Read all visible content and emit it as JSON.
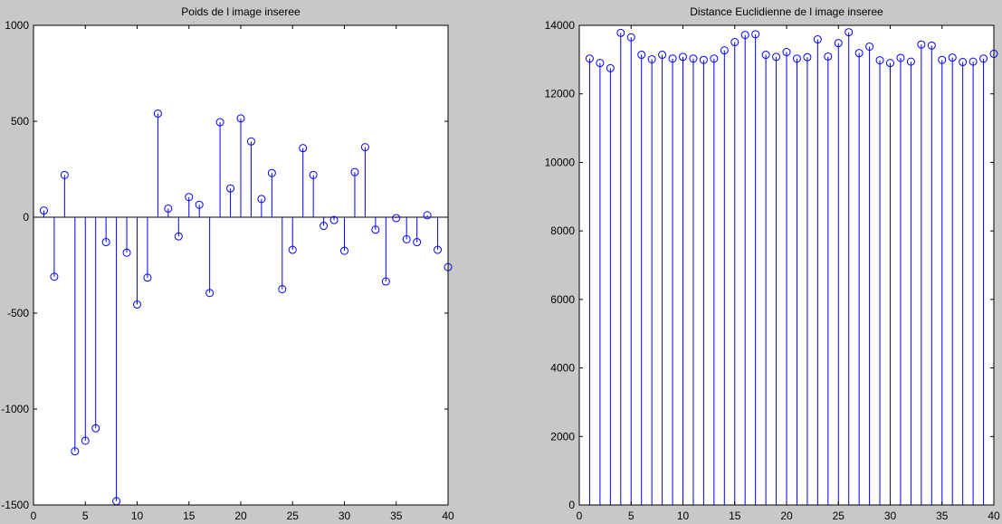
{
  "window": {
    "background": "#c8c8c8"
  },
  "chart_data": [
    {
      "type": "stem",
      "title": "Poids de l image inseree",
      "xlabel": "",
      "ylabel": "",
      "xlim": [
        0,
        40
      ],
      "ylim": [
        -1500,
        1000
      ],
      "xticks": [
        0,
        5,
        10,
        15,
        20,
        25,
        30,
        35,
        40
      ],
      "yticks": [
        -1500,
        -1000,
        -500,
        0,
        500,
        1000
      ],
      "color": "#0000ff",
      "x": [
        1,
        2,
        3,
        4,
        5,
        6,
        7,
        8,
        9,
        10,
        11,
        12,
        13,
        14,
        15,
        16,
        17,
        18,
        19,
        20,
        21,
        22,
        23,
        24,
        25,
        26,
        27,
        28,
        29,
        30,
        31,
        32,
        33,
        34,
        35,
        36,
        37,
        38,
        39,
        40
      ],
      "values": [
        35,
        -310,
        220,
        -1220,
        -1165,
        -1100,
        -130,
        -1480,
        -185,
        -455,
        -315,
        540,
        45,
        -100,
        105,
        65,
        -395,
        495,
        150,
        515,
        395,
        95,
        230,
        -375,
        -170,
        360,
        220,
        -45,
        -15,
        -175,
        235,
        365,
        -65,
        -335,
        -5,
        -115,
        -130,
        10,
        -170,
        -260
      ],
      "grid": false,
      "legend": "none"
    },
    {
      "type": "stem",
      "title": "Distance Euclidienne de l image inseree",
      "xlabel": "",
      "ylabel": "",
      "xlim": [
        0,
        40
      ],
      "ylim": [
        0,
        14000
      ],
      "xticks": [
        0,
        5,
        10,
        15,
        20,
        25,
        30,
        35,
        40
      ],
      "yticks": [
        0,
        2000,
        4000,
        6000,
        8000,
        10000,
        12000,
        14000
      ],
      "color": "#0000ff",
      "x": [
        1,
        2,
        3,
        4,
        5,
        6,
        7,
        8,
        9,
        10,
        11,
        12,
        13,
        14,
        15,
        16,
        17,
        18,
        19,
        20,
        21,
        22,
        23,
        24,
        25,
        26,
        27,
        28,
        29,
        30,
        31,
        32,
        33,
        34,
        35,
        36,
        37,
        38,
        39,
        40
      ],
      "values": [
        13030,
        12900,
        12750,
        13780,
        13650,
        13140,
        13010,
        13140,
        13030,
        13080,
        13030,
        12990,
        13030,
        13270,
        13510,
        13720,
        13740,
        13140,
        13080,
        13220,
        13030,
        13070,
        13590,
        13090,
        13480,
        13800,
        13190,
        13380,
        12980,
        12900,
        13050,
        12940,
        13440,
        13410,
        12990,
        13060,
        12930,
        12940,
        13030,
        13170
      ],
      "grid": false,
      "legend": "none"
    }
  ]
}
